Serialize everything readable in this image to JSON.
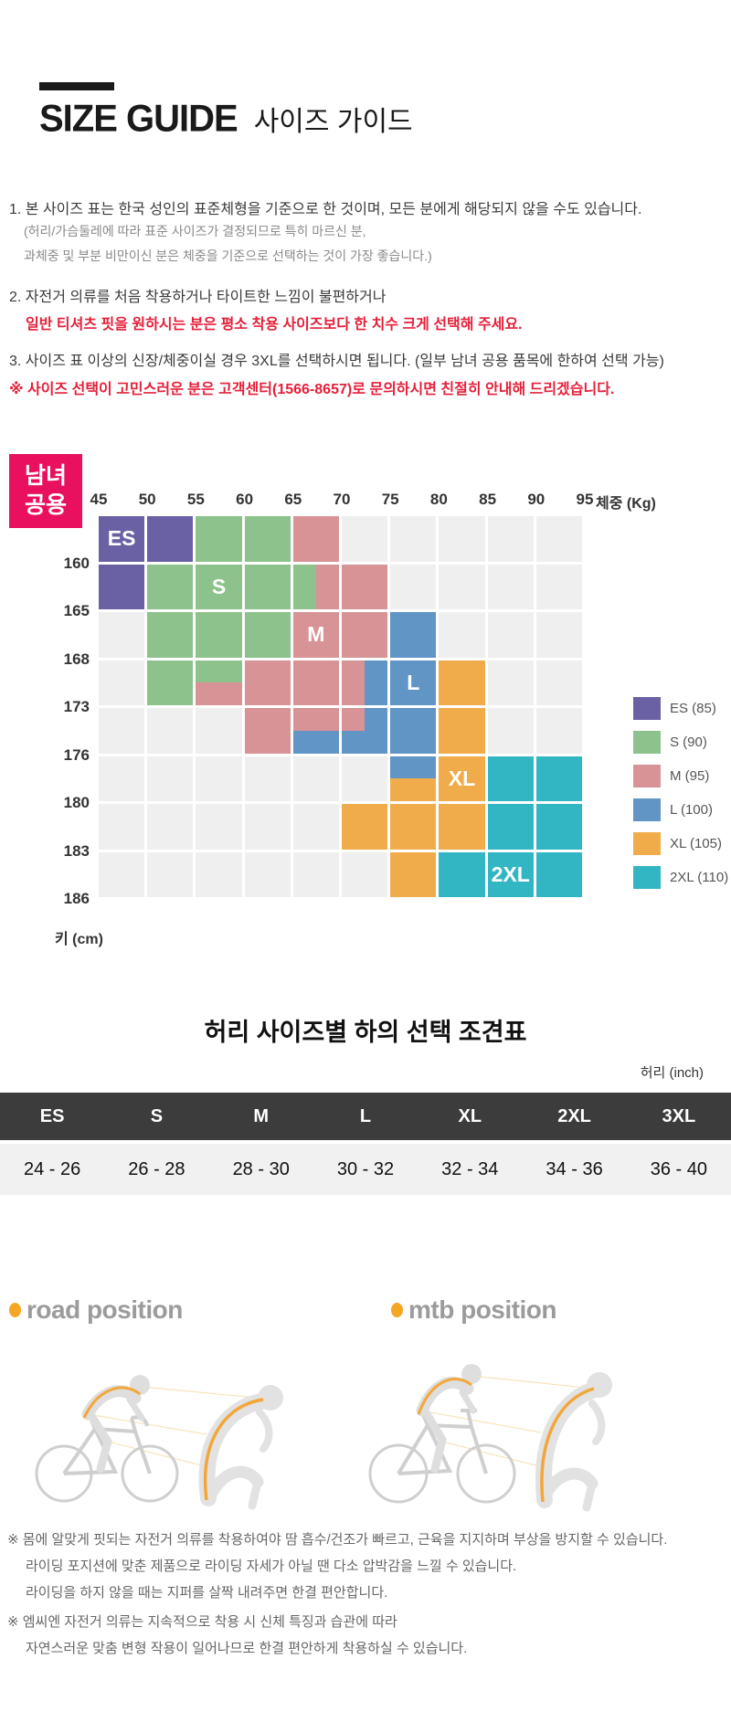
{
  "header": {
    "title_en": "SIZE GUIDE",
    "title_ko": "사이즈 가이드"
  },
  "notes": {
    "item1": "1. 본 사이즈 표는 한국 성인의 표준체형을 기준으로 한 것이며, 모든 분에게 해당되지 않을 수도 있습니다.",
    "item1_sub1": "(허리/가슴둘레에 따라 표준 사이즈가 결정되므로 특히 마르신 분,",
    "item1_sub2": "과체중 및 부분 비만이신 분은 체중을 기준으로 선택하는 것이 가장 좋습니다.)",
    "item2": "2. 자전거 의류를 처음 착용하거나 타이트한 느낌이 불편하거나",
    "item2_red": "일반 티셔츠 핏을 원하시는 분은 평소 착용 사이즈보다 한 치수 크게 선택해 주세요.",
    "item3": "3. 사이즈 표 이상의 신장/체중이실 경우 3XL를 선택하시면 됩니다. (일부 남녀 공용 품목에 한하여 선택 가능)",
    "item3_red": "※ 사이즈 선택이 고민스러운 분은 고객센터(1566-8657)로 문의하시면 친절히 안내해 드리겠습니다.",
    "red_color": "#e5203a"
  },
  "badge": {
    "line1": "남녀",
    "line2": "공용",
    "color": "#e9115f"
  },
  "chart_data": {
    "type": "heatmap",
    "title": "남녀공용 키/체중 사이즈 차트",
    "x_label": "체중 (Kg)",
    "y_label": "키 (cm)",
    "x_ticks": [
      45,
      50,
      55,
      60,
      65,
      70,
      75,
      80,
      85,
      90,
      95
    ],
    "y_ticks": [
      160,
      165,
      168,
      173,
      176,
      180,
      183,
      186
    ],
    "sizes": [
      "ES",
      "S",
      "M",
      "L",
      "XL",
      "2XL"
    ],
    "colors": {
      "ES": "#6a61a5",
      "S": "#8dc28d",
      "M": "#d89396",
      "L": "#6195c6",
      "XL": "#f0ac4a",
      "2XL": "#32b6c3",
      "-": "#efefef"
    },
    "rows": [
      [
        "ES",
        "ES",
        "S",
        "S",
        "M",
        "-",
        "-",
        "-",
        "-",
        "-"
      ],
      [
        "ES",
        "S",
        "S",
        "S",
        "S|M:v",
        "M",
        "-",
        "-",
        "-",
        "-"
      ],
      [
        "-",
        "S",
        "S",
        "S",
        "M",
        "M",
        "L",
        "-",
        "-",
        "-"
      ],
      [
        "-",
        "S",
        "S|M:h",
        "M",
        "M",
        "M|L:v",
        "L",
        "XL",
        "-",
        "-"
      ],
      [
        "-",
        "-",
        "-",
        "M",
        "M|L:h",
        "M|L:c",
        "L",
        "XL",
        "-",
        "-"
      ],
      [
        "-",
        "-",
        "-",
        "-",
        "-",
        "-",
        "L|XL:h",
        "XL",
        "2XL",
        "2XL"
      ],
      [
        "-",
        "-",
        "-",
        "-",
        "-",
        "XL",
        "XL",
        "XL",
        "2XL",
        "2XL"
      ],
      [
        "-",
        "-",
        "-",
        "-",
        "-",
        "-",
        "XL",
        "2XL",
        "2XL",
        "2XL"
      ]
    ],
    "cell_labels": [
      {
        "row": 0,
        "col": 0,
        "text": "ES"
      },
      {
        "row": 1,
        "col": 2,
        "text": "S"
      },
      {
        "row": 2,
        "col": 4,
        "text": "M"
      },
      {
        "row": 3,
        "col": 6,
        "text": "L"
      },
      {
        "row": 5,
        "col": 7,
        "text": "XL"
      },
      {
        "row": 7,
        "col": 8,
        "text": "2XL"
      }
    ],
    "legend": [
      {
        "size": "ES",
        "label": "ES (85)"
      },
      {
        "size": "S",
        "label": "S (90)"
      },
      {
        "size": "M",
        "label": "M (95)"
      },
      {
        "size": "L",
        "label": "L (100)"
      },
      {
        "size": "XL",
        "label": "XL (105)"
      },
      {
        "size": "2XL",
        "label": "2XL (110)"
      }
    ]
  },
  "waist_table": {
    "title": "허리 사이즈별 하의 선택 조견표",
    "unit": "허리 (inch)",
    "headers": [
      "ES",
      "S",
      "M",
      "L",
      "XL",
      "2XL",
      "3XL"
    ],
    "values": [
      "24 - 26",
      "26 - 28",
      "28 - 30",
      "30 - 32",
      "32 - 34",
      "34 - 36",
      "36 - 40"
    ]
  },
  "positions": {
    "road": "road position",
    "mtb": "mtb position",
    "bullet_color": "#f5a623",
    "highlight_color": "#f2a73b"
  },
  "footer_notes": {
    "block1": [
      "※ 몸에 알맞게 핏되는 자전거 의류를 착용하여야 땀 흡수/건조가 빠르고, 근육을 지지하며 부상을 방지할 수 있습니다.",
      "라이딩 포지션에 맞춘 제품으로 라이딩 자세가 아닐 땐 다소 압박감을 느낄 수 있습니다.",
      "라이딩을 하지 않을 때는 지퍼를 살짝 내려주면 한결 편안합니다."
    ],
    "block2": [
      "※ 엠씨엔 자전거 의류는 지속적으로 착용 시 신체 특징과 습관에 따라",
      "자연스러운 맞춤 변형 작용이 일어나므로 한결 편안하게 착용하실 수 있습니다."
    ]
  }
}
